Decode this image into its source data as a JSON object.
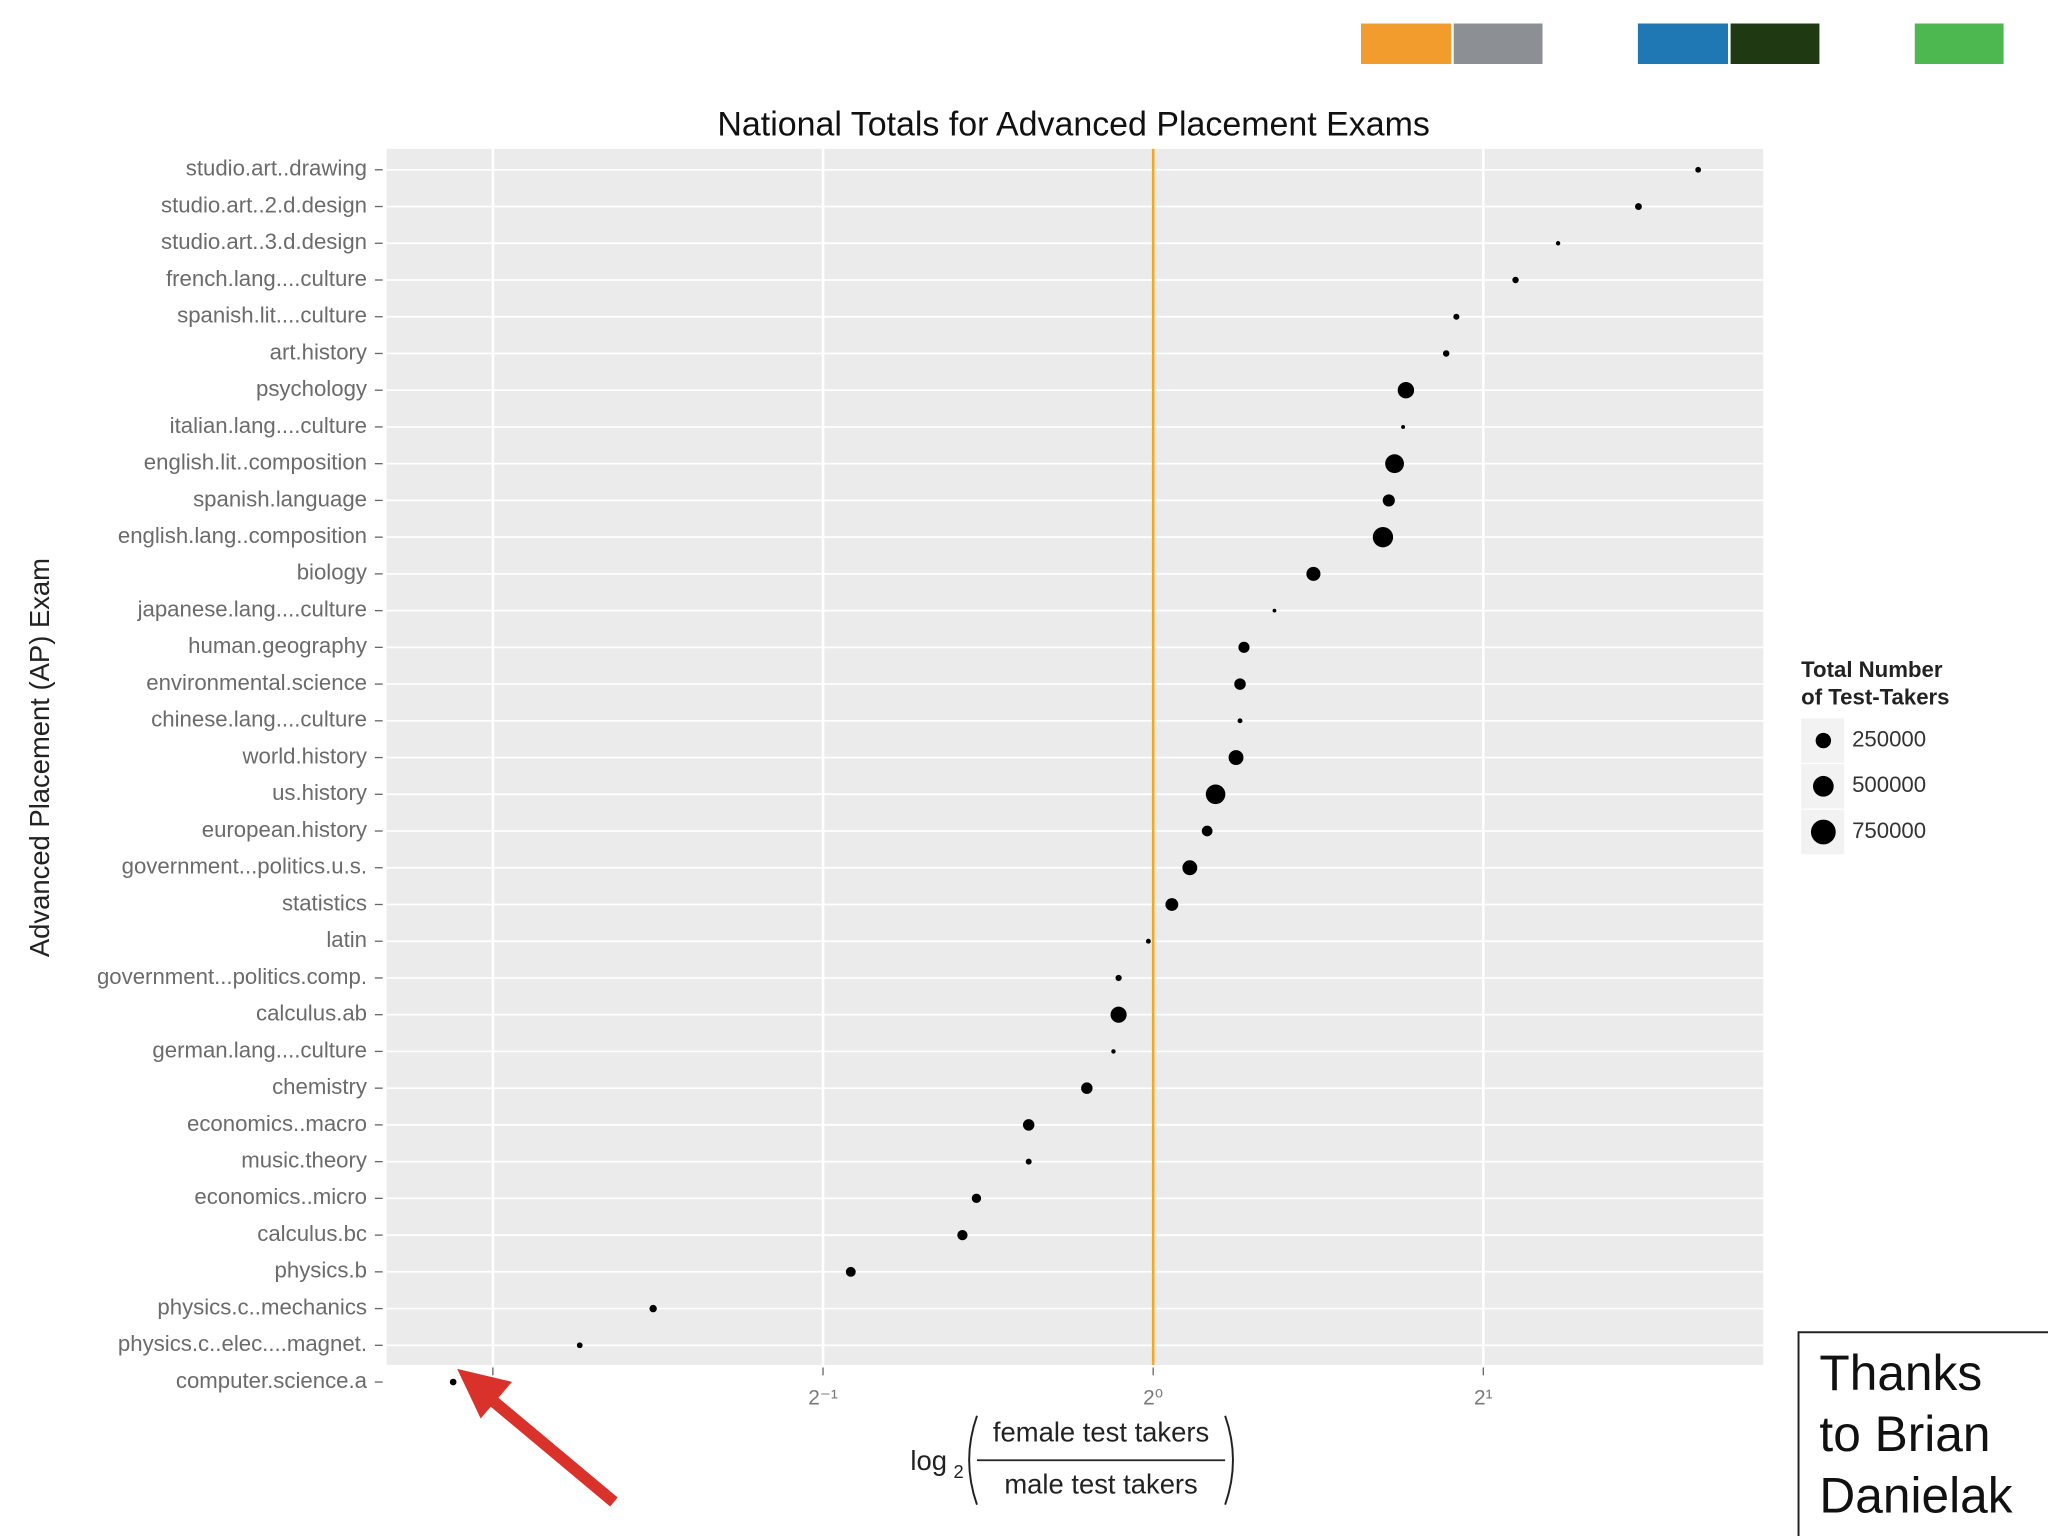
{
  "chart_data": {
    "type": "scatter",
    "title": "National Totals for Advanced Placement Exams",
    "y_label": "Advanced Placement (AP) Exam",
    "x_label": {
      "prefix": "log",
      "subscript": "2",
      "numerator": "female test takers",
      "denominator": "male test takers"
    },
    "xscale": "log2",
    "xlim": [
      0.2,
      3.6
    ],
    "xticks": [
      {
        "value": 0.5,
        "label": "2⁻¹"
      },
      {
        "value": 1,
        "label": "2⁰"
      },
      {
        "value": 2,
        "label": "2¹"
      }
    ],
    "xgrid": [
      0.25,
      0.5,
      1,
      2
    ],
    "ref_line": {
      "value": 1,
      "color": "#f5a623"
    },
    "color": "#000000",
    "categories": [
      "studio.art..drawing",
      "studio.art..2.d.design",
      "studio.art..3.d.design",
      "french.lang....culture",
      "spanish.lit....culture",
      "art.history",
      "psychology",
      "italian.lang....culture",
      "english.lit..composition",
      "spanish.language",
      "english.lang..composition",
      "biology",
      "japanese.lang....culture",
      "human.geography",
      "environmental.science",
      "chinese.lang....culture",
      "world.history",
      "us.history",
      "european.history",
      "government...politics.u.s.",
      "statistics",
      "latin",
      "government...politics.comp.",
      "calculus.ab",
      "german.lang....culture",
      "chemistry",
      "economics..macro",
      "music.theory",
      "economics..micro",
      "calculus.bc",
      "physics.b",
      "physics.c..mechanics",
      "physics.c..elec....magnet.",
      "computer.science.a"
    ],
    "values": [
      3.14,
      2.77,
      2.34,
      2.14,
      1.89,
      1.85,
      1.7,
      1.69,
      1.66,
      1.64,
      1.62,
      1.4,
      1.29,
      1.21,
      1.2,
      1.2,
      1.19,
      1.14,
      1.12,
      1.08,
      1.04,
      0.99,
      0.93,
      0.93,
      0.92,
      0.87,
      0.77,
      0.77,
      0.69,
      0.67,
      0.53,
      0.35,
      0.3,
      0.23
    ],
    "sizes": [
      15000,
      28000,
      5000,
      22000,
      18000,
      23000,
      290000,
      2500,
      400000,
      140000,
      480000,
      200000,
      2000,
      110000,
      120000,
      8000,
      230000,
      440000,
      100000,
      230000,
      160000,
      8000,
      20000,
      280000,
      5000,
      120000,
      120000,
      17000,
      70000,
      90000,
      80000,
      35000,
      15000,
      25000
    ],
    "legend": {
      "title": [
        "Total Number",
        "of Test-Takers"
      ],
      "sizes": [
        250000,
        500000,
        750000
      ]
    },
    "annotation": [
      "Thanks",
      "to Brian",
      "Danielak"
    ]
  }
}
